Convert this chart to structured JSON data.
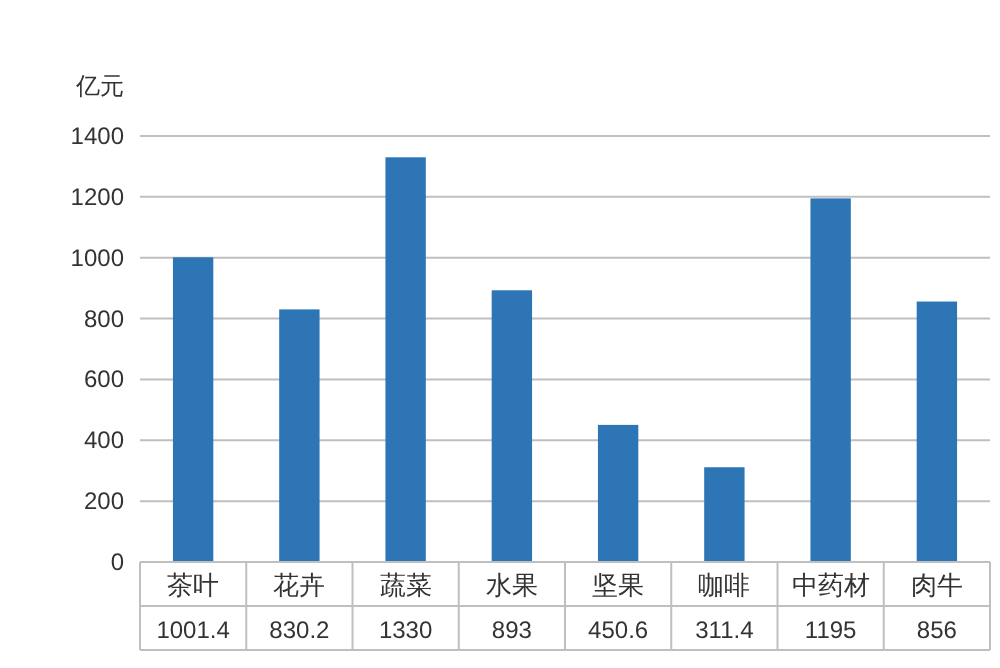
{
  "chart_data": {
    "type": "bar",
    "ylabel": "亿元",
    "categories": [
      "茶叶",
      "花卉",
      "蔬菜",
      "水果",
      "坚果",
      "咖啡",
      "中药材",
      "肉牛"
    ],
    "values": [
      1001.4,
      830.2,
      1330,
      893,
      450.6,
      311.4,
      1195,
      856
    ],
    "color": "#2e75b6",
    "ylim": [
      0,
      1400
    ],
    "yticks": [
      0,
      200,
      400,
      600,
      800,
      1000,
      1200,
      1400
    ],
    "grid": "y",
    "data_labels": true
  }
}
